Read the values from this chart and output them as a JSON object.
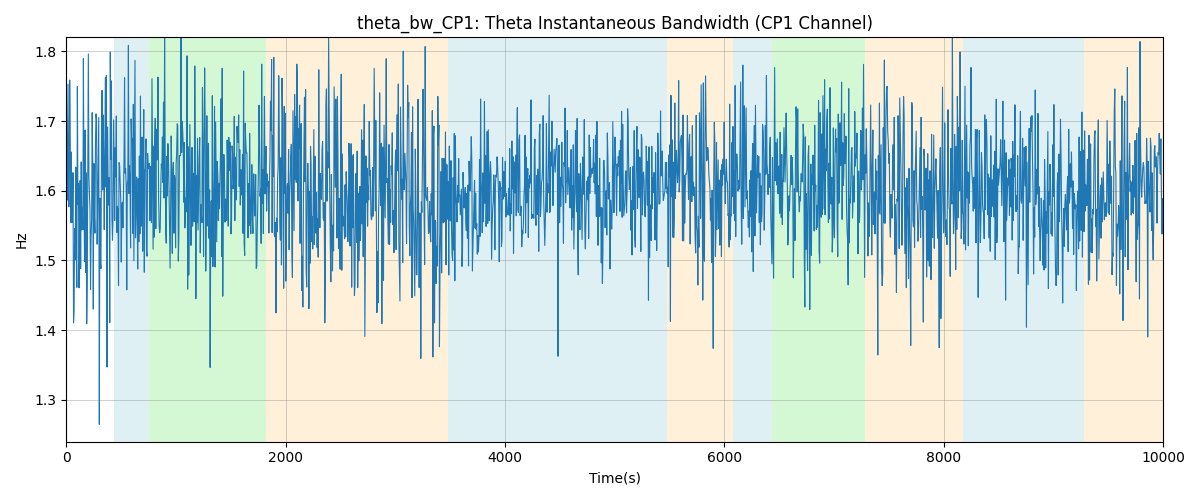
{
  "title": "theta_bw_CP1: Theta Instantaneous Bandwidth (CP1 Channel)",
  "xlabel": "Time(s)",
  "ylabel": "Hz",
  "xlim": [
    0,
    10000
  ],
  "ylim": [
    1.24,
    1.82
  ],
  "yticks": [
    1.3,
    1.4,
    1.5,
    1.6,
    1.7,
    1.8
  ],
  "xticks": [
    0,
    2000,
    4000,
    6000,
    8000,
    10000
  ],
  "background_regions": [
    {
      "xmin": 430,
      "xmax": 750,
      "color": "#add8e6",
      "alpha": 0.38
    },
    {
      "xmin": 750,
      "xmax": 1820,
      "color": "#90ee90",
      "alpha": 0.38
    },
    {
      "xmin": 1820,
      "xmax": 3480,
      "color": "#ffd9a0",
      "alpha": 0.38
    },
    {
      "xmin": 3480,
      "xmax": 5480,
      "color": "#add8e6",
      "alpha": 0.38
    },
    {
      "xmin": 5480,
      "xmax": 6080,
      "color": "#ffd9a0",
      "alpha": 0.38
    },
    {
      "xmin": 6080,
      "xmax": 6430,
      "color": "#add8e6",
      "alpha": 0.38
    },
    {
      "xmin": 6430,
      "xmax": 7280,
      "color": "#90ee90",
      "alpha": 0.38
    },
    {
      "xmin": 7280,
      "xmax": 8180,
      "color": "#ffd9a0",
      "alpha": 0.38
    },
    {
      "xmin": 8180,
      "xmax": 9280,
      "color": "#add8e6",
      "alpha": 0.38
    },
    {
      "xmin": 9280,
      "xmax": 10000,
      "color": "#ffd9a0",
      "alpha": 0.38
    }
  ],
  "line_color": "#1f77b4",
  "line_width": 0.8,
  "seed": 42,
  "n_points": 2000,
  "figsize": [
    12,
    5
  ],
  "dpi": 100
}
